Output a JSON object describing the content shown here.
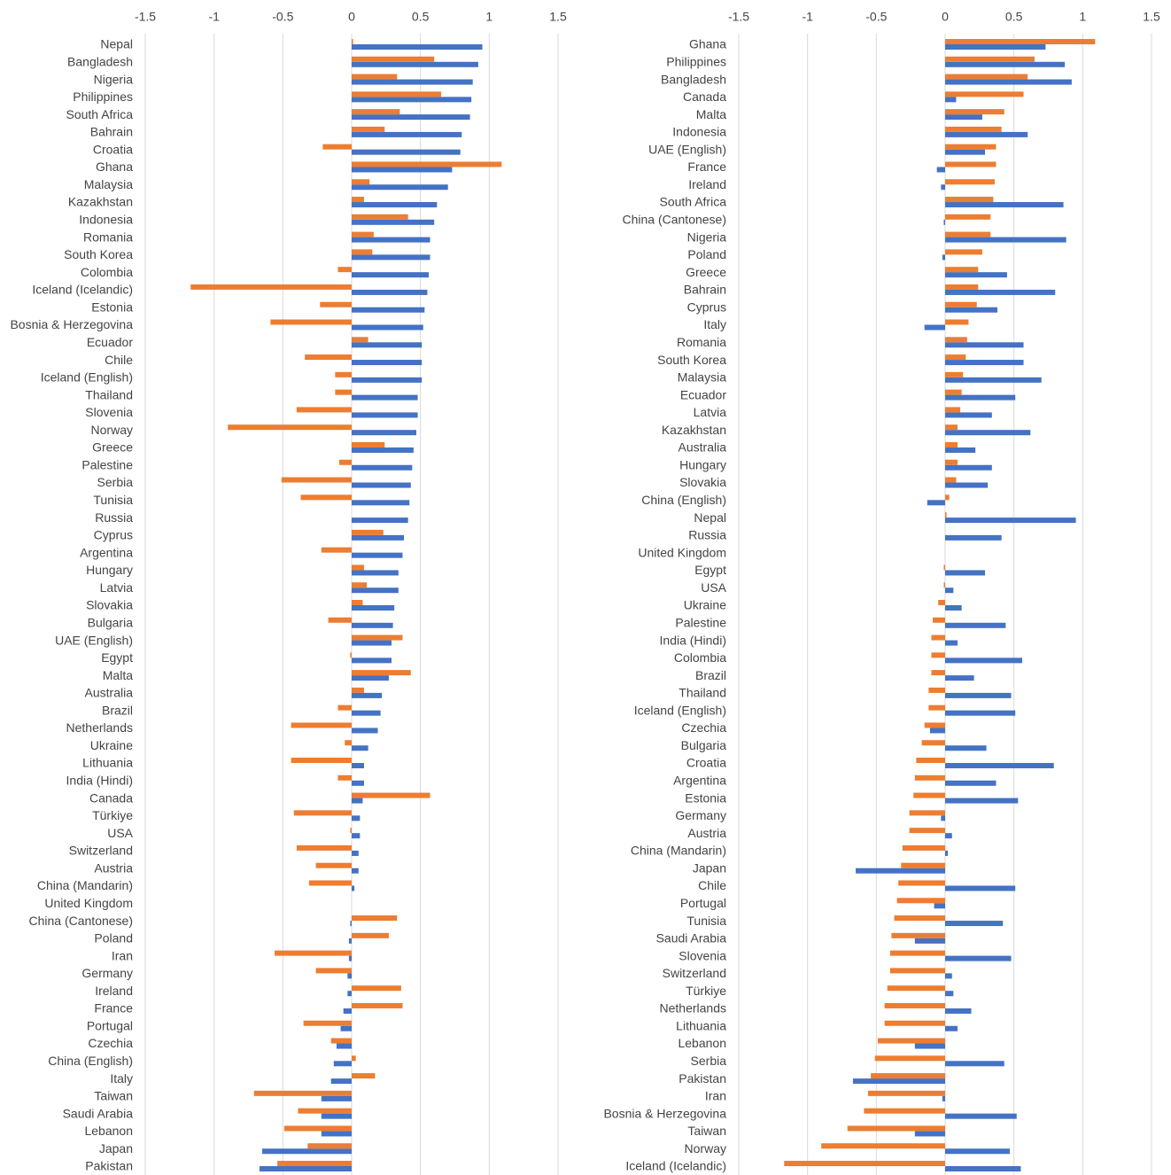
{
  "chart_data": [
    {
      "type": "bar",
      "orientation": "horizontal",
      "categories": [
        "Nepal",
        "Bangladesh",
        "Nigeria",
        "Philippines",
        "South Africa",
        "Bahrain",
        "Croatia",
        "Ghana",
        "Malaysia",
        "Kazakhstan",
        "Indonesia",
        "Romania",
        "South Korea",
        "Colombia",
        "Iceland (Icelandic)",
        "Estonia",
        "Bosnia & Herzegovina",
        "Ecuador",
        "Chile",
        "Iceland (English)",
        "Thailand",
        "Slovenia",
        "Norway",
        "Greece",
        "Palestine",
        "Serbia",
        "Tunisia",
        "Russia",
        "Cyprus",
        "Argentina",
        "Hungary",
        "Latvia",
        "Slovakia",
        "Bulgaria",
        "UAE (English)",
        "Egypt",
        "Malta",
        "Australia",
        "Brazil",
        "Netherlands",
        "Ukraine",
        "Lithuania",
        "India (Hindi)",
        "Canada",
        "Türkiye",
        "USA",
        "Switzerland",
        "Austria",
        "China (Mandarin)",
        "United Kingdom",
        "China (Cantonese)",
        "Poland",
        "Iran",
        "Germany",
        "Ireland",
        "France",
        "Portugal",
        "Czechia",
        "China (English)",
        "Italy",
        "Taiwan",
        "Saudi Arabia",
        "Lebanon",
        "Japan",
        "Pakistan"
      ],
      "series": [
        {
          "color": "#4472c4",
          "values": [
            0.95,
            0.92,
            0.88,
            0.87,
            0.86,
            0.8,
            0.79,
            0.73,
            0.7,
            0.62,
            0.6,
            0.57,
            0.57,
            0.56,
            0.55,
            0.53,
            0.52,
            0.51,
            0.51,
            0.51,
            0.48,
            0.48,
            0.47,
            0.45,
            0.44,
            0.43,
            0.42,
            0.41,
            0.38,
            0.37,
            0.34,
            0.34,
            0.31,
            0.3,
            0.29,
            0.29,
            0.27,
            0.22,
            0.21,
            0.19,
            0.12,
            0.09,
            0.09,
            0.08,
            0.06,
            0.06,
            0.05,
            0.05,
            0.02,
            0,
            -0.01,
            -0.02,
            -0.02,
            -0.03,
            -0.03,
            -0.06,
            -0.08,
            -0.11,
            -0.13,
            -0.15,
            -0.22,
            -0.22,
            -0.22,
            -0.65,
            -0.67
          ]
        },
        {
          "color": "#ed7d31",
          "values": [
            0.01,
            0.6,
            0.33,
            0.65,
            0.35,
            0.24,
            -0.21,
            1.09,
            0.13,
            0.09,
            0.41,
            0.16,
            0.15,
            -0.1,
            -1.17,
            -0.23,
            -0.59,
            0.12,
            -0.34,
            -0.12,
            -0.12,
            -0.4,
            -0.9,
            0.24,
            -0.09,
            -0.51,
            -0.37,
            0,
            0.23,
            -0.22,
            0.09,
            0.11,
            0.08,
            -0.17,
            0.37,
            -0.01,
            0.43,
            0.09,
            -0.1,
            -0.44,
            -0.05,
            -0.44,
            -0.1,
            0.57,
            -0.42,
            -0.01,
            -0.4,
            -0.26,
            -0.31,
            0,
            0.33,
            0.27,
            -0.56,
            -0.26,
            0.36,
            0.37,
            -0.35,
            -0.15,
            0.03,
            0.17,
            -0.71,
            -0.39,
            -0.49,
            -0.32,
            -0.54
          ]
        }
      ],
      "xlim": [
        -1.5,
        1.5
      ],
      "xticks": [
        -1.5,
        -1,
        -0.5,
        0,
        0.5,
        1,
        1.5
      ],
      "grid": true
    },
    {
      "type": "bar",
      "orientation": "horizontal",
      "categories": [
        "Ghana",
        "Philippines",
        "Bangladesh",
        "Canada",
        "Malta",
        "Indonesia",
        "UAE (English)",
        "France",
        "Ireland",
        "South Africa",
        "China (Cantonese)",
        "Nigeria",
        "Poland",
        "Greece",
        "Bahrain",
        "Cyprus",
        "Italy",
        "Romania",
        "South Korea",
        "Malaysia",
        "Ecuador",
        "Latvia",
        "Kazakhstan",
        "Australia",
        "Hungary",
        "Slovakia",
        "China (English)",
        "Nepal",
        "Russia",
        "United Kingdom",
        "Egypt",
        "USA",
        "Ukraine",
        "Palestine",
        "India (Hindi)",
        "Colombia",
        "Brazil",
        "Thailand",
        "Iceland (English)",
        "Czechia",
        "Bulgaria",
        "Croatia",
        "Argentina",
        "Estonia",
        "Germany",
        "Austria",
        "China (Mandarin)",
        "Japan",
        "Chile",
        "Portugal",
        "Tunisia",
        "Saudi Arabia",
        "Slovenia",
        "Switzerland",
        "Türkiye",
        "Netherlands",
        "Lithuania",
        "Lebanon",
        "Serbia",
        "Pakistan",
        "Iran",
        "Bosnia & Herzegovina",
        "Taiwan",
        "Norway",
        "Iceland (Icelandic)"
      ],
      "series": [
        {
          "color": "#4472c4",
          "values": [
            0.73,
            0.87,
            0.92,
            0.08,
            0.27,
            0.6,
            0.29,
            -0.06,
            -0.03,
            0.86,
            -0.01,
            0.88,
            -0.02,
            0.45,
            0.8,
            0.38,
            -0.15,
            0.57,
            0.57,
            0.7,
            0.51,
            0.34,
            0.62,
            0.22,
            0.34,
            0.31,
            -0.13,
            0.95,
            0.41,
            0,
            0.29,
            0.06,
            0.12,
            0.44,
            0.09,
            0.56,
            0.21,
            0.48,
            0.51,
            -0.11,
            0.3,
            0.79,
            0.37,
            0.53,
            -0.03,
            0.05,
            0.02,
            -0.65,
            0.51,
            -0.08,
            0.42,
            -0.22,
            0.48,
            0.05,
            0.06,
            0.19,
            0.09,
            -0.22,
            0.43,
            -0.67,
            -0.02,
            0.52,
            -0.22,
            0.47,
            0.55
          ]
        },
        {
          "color": "#ed7d31",
          "values": [
            1.09,
            0.65,
            0.6,
            0.57,
            0.43,
            0.41,
            0.37,
            0.37,
            0.36,
            0.35,
            0.33,
            0.33,
            0.27,
            0.24,
            0.24,
            0.23,
            0.17,
            0.16,
            0.15,
            0.13,
            0.12,
            0.11,
            0.09,
            0.09,
            0.09,
            0.08,
            0.03,
            0.01,
            0,
            0,
            -0.01,
            -0.01,
            -0.05,
            -0.09,
            -0.1,
            -0.1,
            -0.1,
            -0.12,
            -0.12,
            -0.15,
            -0.17,
            -0.21,
            -0.22,
            -0.23,
            -0.26,
            -0.26,
            -0.31,
            -0.32,
            -0.34,
            -0.35,
            -0.37,
            -0.39,
            -0.4,
            -0.4,
            -0.42,
            -0.44,
            -0.44,
            -0.49,
            -0.51,
            -0.54,
            -0.56,
            -0.59,
            -0.71,
            -0.9,
            -1.17
          ]
        }
      ],
      "xlim": [
        -1.5,
        1.5
      ],
      "xticks": [
        -1.5,
        -1,
        -0.5,
        0,
        0.5,
        1,
        1.5
      ],
      "grid": true
    }
  ]
}
